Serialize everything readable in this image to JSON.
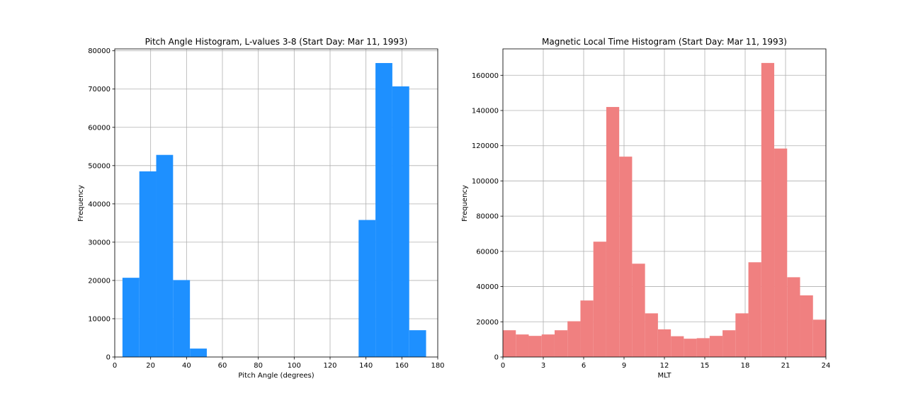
{
  "chart_data": [
    {
      "type": "bar",
      "title": "Pitch Angle Histogram, L-values 3-8 (Start Day: Mar 11, 1993)",
      "xlabel": "Pitch Angle (degrees)",
      "ylabel": "Frequency",
      "xlim": [
        0,
        180
      ],
      "ylim": [
        0,
        80500
      ],
      "xticks": [
        0,
        20,
        40,
        60,
        80,
        100,
        120,
        140,
        160,
        180
      ],
      "yticks": [
        0,
        10000,
        20000,
        30000,
        40000,
        50000,
        60000,
        70000,
        80000
      ],
      "color": "#1e90ff",
      "grid": true,
      "bins": [
        {
          "x0": 4.3,
          "x1": 13.7,
          "value": 20700
        },
        {
          "x0": 13.7,
          "x1": 23.1,
          "value": 48500
        },
        {
          "x0": 23.1,
          "x1": 32.5,
          "value": 52800
        },
        {
          "x0": 32.5,
          "x1": 41.9,
          "value": 20100
        },
        {
          "x0": 41.9,
          "x1": 51.3,
          "value": 2200
        },
        {
          "x0": 51.3,
          "x1": 60.7,
          "value": 0
        },
        {
          "x0": 60.7,
          "x1": 70.1,
          "value": 0
        },
        {
          "x0": 70.1,
          "x1": 79.5,
          "value": 0
        },
        {
          "x0": 79.5,
          "x1": 88.9,
          "value": 0
        },
        {
          "x0": 88.9,
          "x1": 98.3,
          "value": 0
        },
        {
          "x0": 98.3,
          "x1": 107.7,
          "value": 0
        },
        {
          "x0": 107.7,
          "x1": 117.1,
          "value": 0
        },
        {
          "x0": 117.1,
          "x1": 126.5,
          "value": 0
        },
        {
          "x0": 126.5,
          "x1": 135.9,
          "value": 0
        },
        {
          "x0": 135.9,
          "x1": 145.3,
          "value": 35800
        },
        {
          "x0": 145.3,
          "x1": 154.7,
          "value": 76800
        },
        {
          "x0": 154.7,
          "x1": 164.1,
          "value": 70700
        },
        {
          "x0": 164.1,
          "x1": 173.5,
          "value": 7000
        }
      ]
    },
    {
      "type": "bar",
      "title": "Magnetic Local Time Histogram (Start Day: Mar 11, 1993)",
      "xlabel": "MLT",
      "ylabel": "Frequency",
      "xlim": [
        0,
        24
      ],
      "ylim": [
        0,
        175000
      ],
      "xticks": [
        0,
        3,
        6,
        9,
        12,
        15,
        18,
        21,
        24
      ],
      "yticks": [
        0,
        20000,
        40000,
        60000,
        80000,
        100000,
        120000,
        140000,
        160000
      ],
      "color": "#f08080",
      "grid": true,
      "bins": [
        {
          "x0": 0,
          "x1": 0.96,
          "value": 15200
        },
        {
          "x0": 0.96,
          "x1": 1.92,
          "value": 12800
        },
        {
          "x0": 1.92,
          "x1": 2.88,
          "value": 12000
        },
        {
          "x0": 2.88,
          "x1": 3.84,
          "value": 12800
        },
        {
          "x0": 3.84,
          "x1": 4.8,
          "value": 15200
        },
        {
          "x0": 4.8,
          "x1": 5.76,
          "value": 20300
        },
        {
          "x0": 5.76,
          "x1": 6.72,
          "value": 32100
        },
        {
          "x0": 6.72,
          "x1": 7.68,
          "value": 65500
        },
        {
          "x0": 7.68,
          "x1": 8.64,
          "value": 142000
        },
        {
          "x0": 8.64,
          "x1": 9.6,
          "value": 113800
        },
        {
          "x0": 9.6,
          "x1": 10.56,
          "value": 53000
        },
        {
          "x0": 10.56,
          "x1": 11.52,
          "value": 24800
        },
        {
          "x0": 11.52,
          "x1": 12.48,
          "value": 15700
        },
        {
          "x0": 12.48,
          "x1": 13.44,
          "value": 11800
        },
        {
          "x0": 13.44,
          "x1": 14.4,
          "value": 10400
        },
        {
          "x0": 14.4,
          "x1": 15.36,
          "value": 10700
        },
        {
          "x0": 15.36,
          "x1": 16.32,
          "value": 12000
        },
        {
          "x0": 16.32,
          "x1": 17.28,
          "value": 15200
        },
        {
          "x0": 17.28,
          "x1": 18.24,
          "value": 24800
        },
        {
          "x0": 18.24,
          "x1": 19.2,
          "value": 53800
        },
        {
          "x0": 19.2,
          "x1": 20.16,
          "value": 167000
        },
        {
          "x0": 20.16,
          "x1": 21.12,
          "value": 118400
        },
        {
          "x0": 21.12,
          "x1": 22.08,
          "value": 45300
        },
        {
          "x0": 22.08,
          "x1": 23.04,
          "value": 35000
        },
        {
          "x0": 23.04,
          "x1": 24,
          "value": 21200
        }
      ]
    }
  ]
}
